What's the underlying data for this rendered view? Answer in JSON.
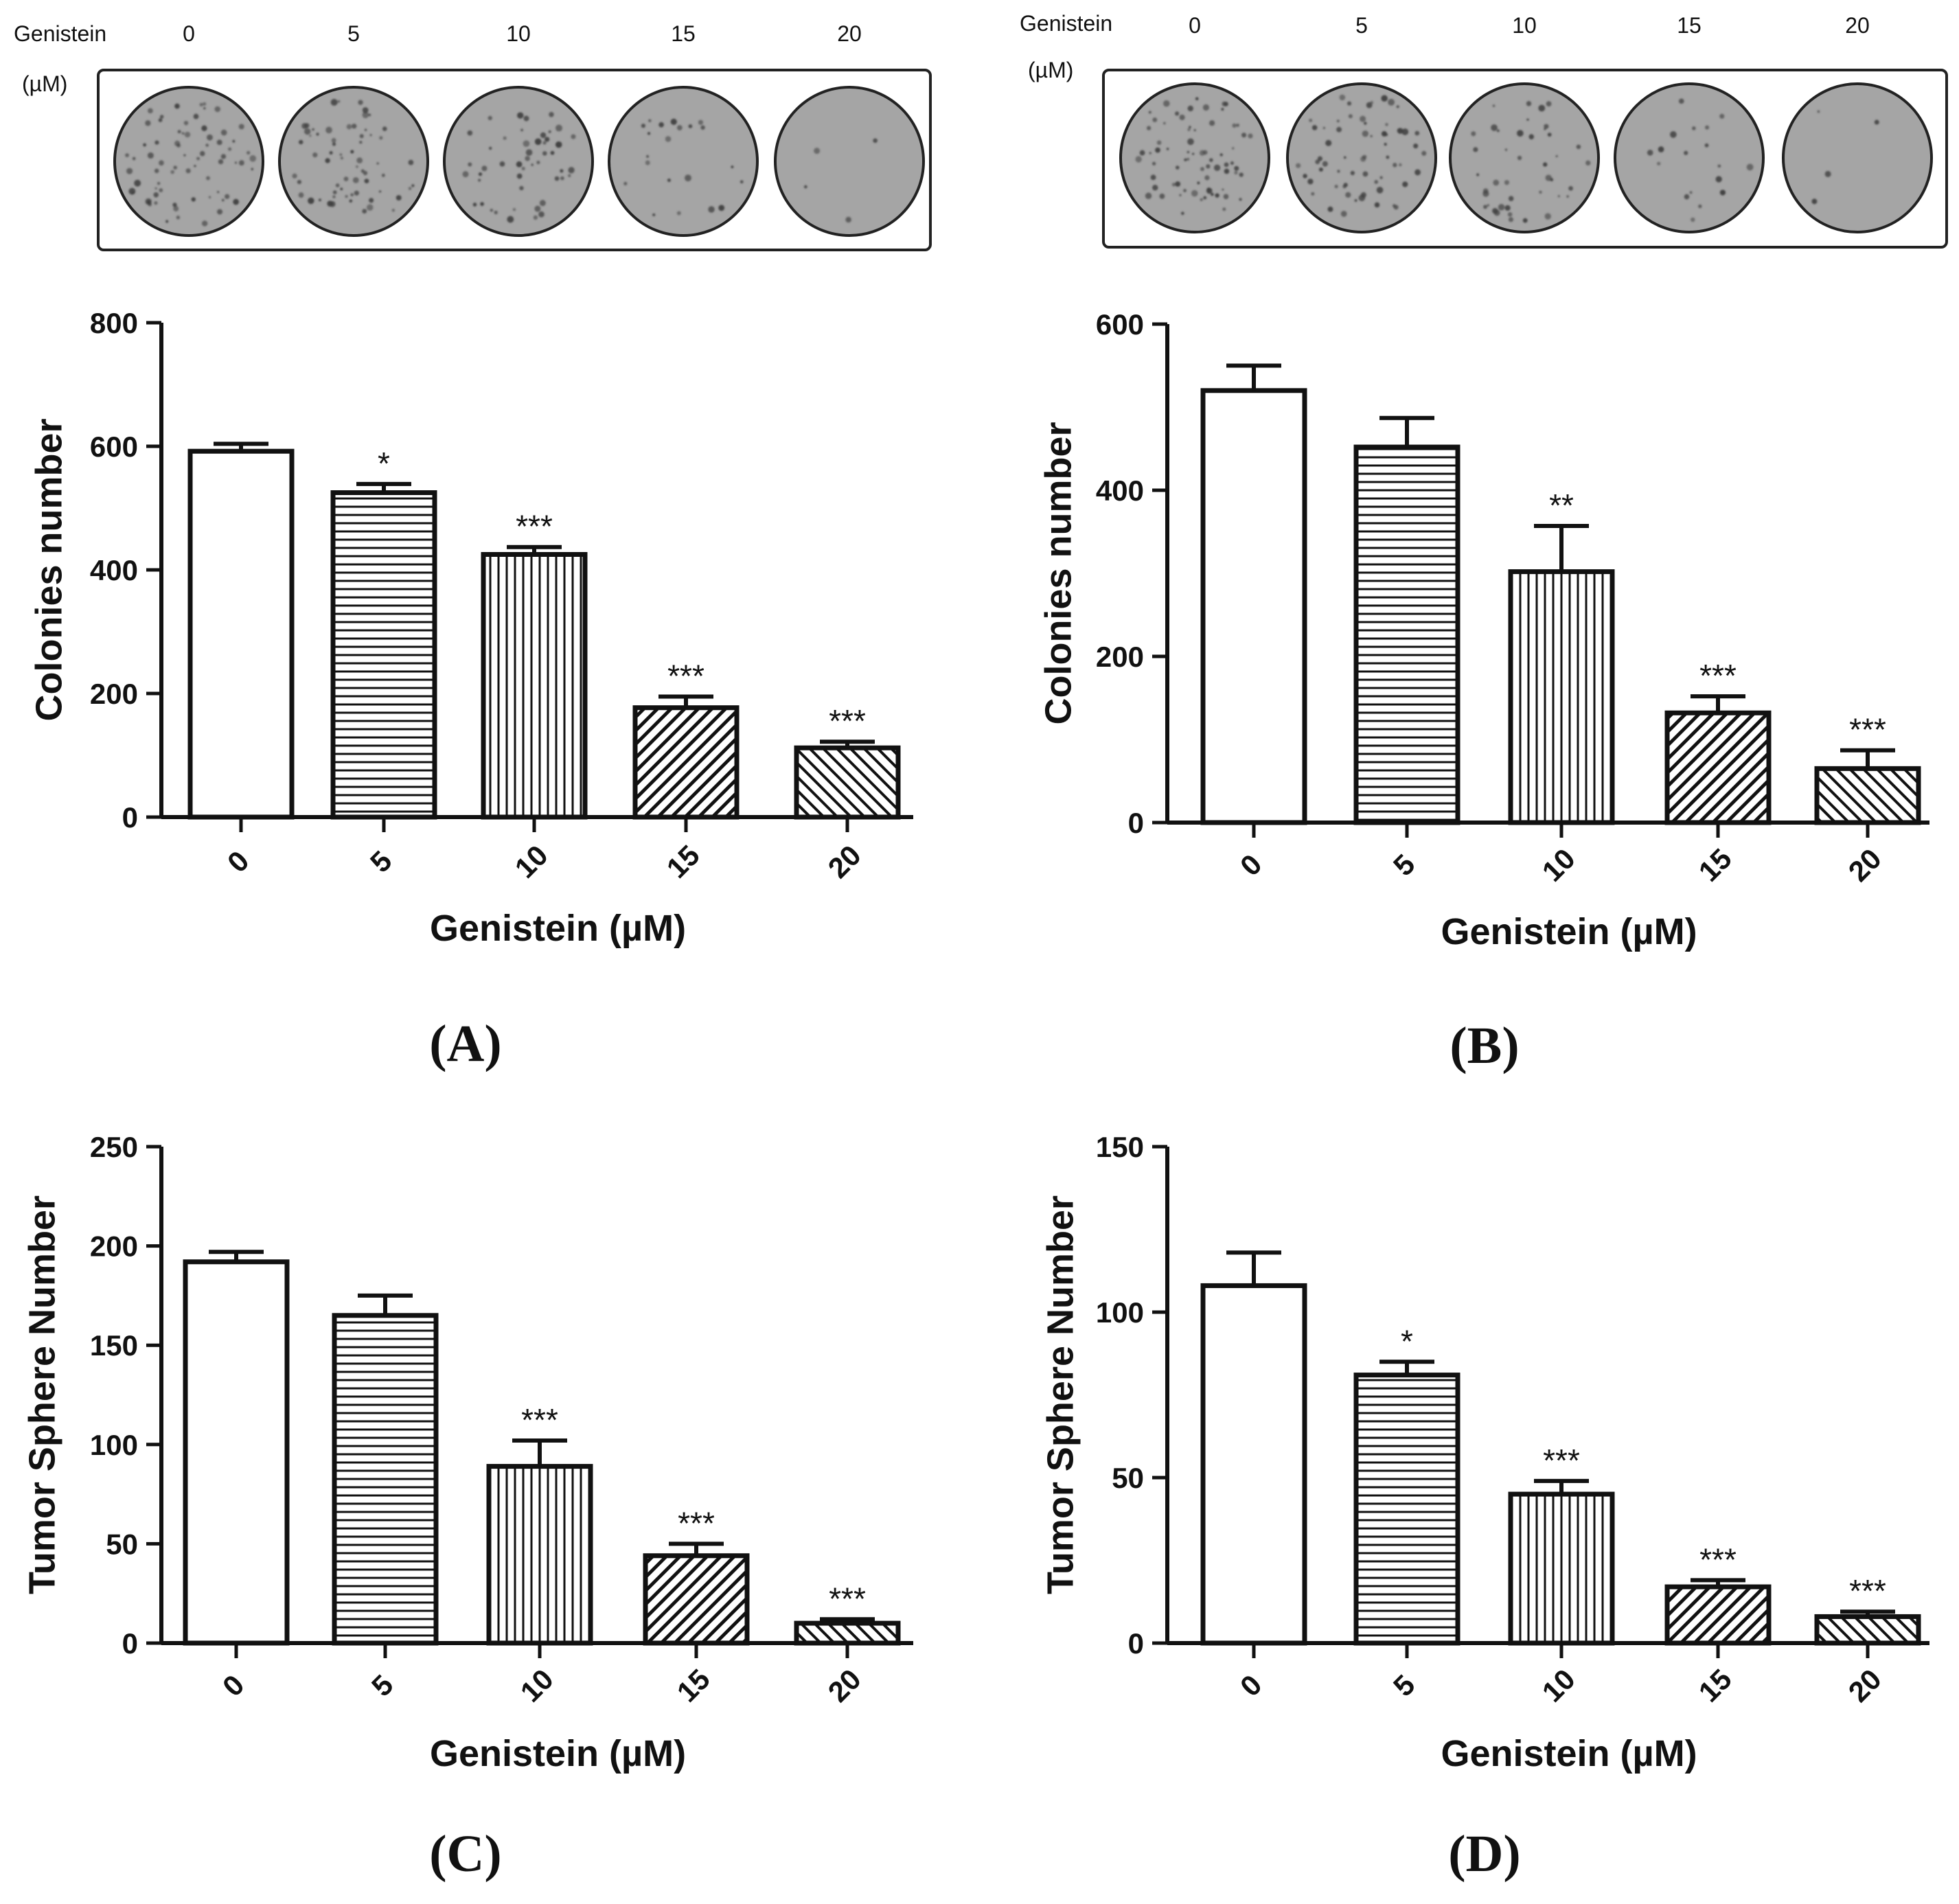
{
  "colors": {
    "ink": "#111111",
    "plate_well": "#a5a5a5",
    "plate_well_edge": "#7c7c7c",
    "colony_dot": "#3e3e3e"
  },
  "plates": [
    {
      "panel": "A",
      "label_top": "Genistein",
      "label_bottom": "(µM)",
      "doses": [
        "0",
        "5",
        "10",
        "15",
        "20"
      ],
      "colony_density": [
        1.0,
        0.9,
        0.7,
        0.3,
        0.05
      ]
    },
    {
      "panel": "B",
      "label_top": "Genistein",
      "label_bottom": "(µM)",
      "doses": [
        "0",
        "5",
        "10",
        "15",
        "20"
      ],
      "colony_density": [
        1.0,
        0.88,
        0.6,
        0.25,
        0.05
      ]
    }
  ],
  "chart_data": [
    {
      "panel": "A",
      "panel_label": "(A)",
      "type": "bar",
      "categories": [
        "0",
        "5",
        "10",
        "15",
        "20"
      ],
      "values": [
        592,
        525,
        425,
        177,
        112
      ],
      "errors": [
        12,
        14,
        12,
        18,
        10
      ],
      "significance": [
        "",
        "*",
        "***",
        "***",
        "***"
      ],
      "patterns": [
        "none",
        "horizontal",
        "vertical",
        "diag-right",
        "diag-left"
      ],
      "xlabel": "Genistein (µM)",
      "ylabel": "Colonies number",
      "ylim": [
        0,
        800
      ],
      "yticks": [
        0,
        200,
        400,
        600,
        800
      ]
    },
    {
      "panel": "B",
      "panel_label": "(B)",
      "type": "bar",
      "categories": [
        "0",
        "5",
        "10",
        "15",
        "20"
      ],
      "values": [
        520,
        452,
        302,
        132,
        65
      ],
      "errors": [
        30,
        35,
        55,
        20,
        22
      ],
      "significance": [
        "",
        "",
        "**",
        "***",
        "***"
      ],
      "patterns": [
        "none",
        "horizontal",
        "vertical",
        "diag-right",
        "diag-left"
      ],
      "xlabel": "Genistein (µM)",
      "ylabel": "Colonies number",
      "ylim": [
        0,
        600
      ],
      "yticks": [
        0,
        200,
        400,
        600
      ]
    },
    {
      "panel": "C",
      "panel_label": "(C)",
      "type": "bar",
      "categories": [
        "0",
        "5",
        "10",
        "15",
        "20"
      ],
      "values": [
        192,
        165,
        89,
        44,
        10
      ],
      "errors": [
        5,
        10,
        13,
        6,
        2
      ],
      "significance": [
        "",
        "",
        "***",
        "***",
        "***"
      ],
      "patterns": [
        "none",
        "horizontal",
        "vertical",
        "diag-right",
        "diag-left"
      ],
      "xlabel": "Genistein (µM)",
      "ylabel": "Tumor Sphere Number",
      "ylim": [
        0,
        250
      ],
      "yticks": [
        0,
        50,
        100,
        150,
        200,
        250
      ]
    },
    {
      "panel": "D",
      "panel_label": "(D)",
      "type": "bar",
      "categories": [
        "0",
        "5",
        "10",
        "15",
        "20"
      ],
      "values": [
        108,
        81,
        45,
        17,
        8
      ],
      "errors": [
        10,
        4,
        4,
        2,
        1.5
      ],
      "significance": [
        "",
        "*",
        "***",
        "***",
        "***"
      ],
      "patterns": [
        "none",
        "horizontal",
        "vertical",
        "diag-right",
        "diag-left"
      ],
      "xlabel": "Genistein (µM)",
      "ylabel": "Tumor Sphere Number",
      "ylim": [
        0,
        150
      ],
      "yticks": [
        0,
        50,
        100,
        150
      ]
    }
  ]
}
